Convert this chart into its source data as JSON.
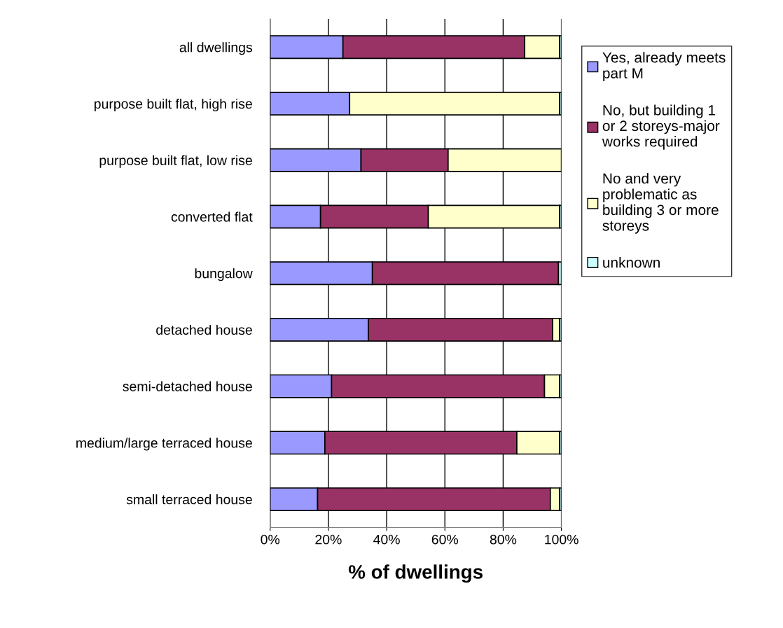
{
  "chart_data": {
    "type": "bar",
    "orientation": "horizontal",
    "stacked": true,
    "xlabel": "% of dwellings",
    "categories": [
      "all dwellings",
      "purpose built flat, high rise",
      "purpose built flat, low rise",
      "converted flat",
      "bungalow",
      "detached house",
      "semi-detached house",
      "medium/large terraced house",
      "small terraced house"
    ],
    "series": [
      {
        "name": "Yes, already meets part M",
        "color": "#9999ff",
        "values": [
          25,
          27.3,
          31.2,
          17.3,
          35.1,
          33.7,
          21.1,
          18.8,
          16.3
        ]
      },
      {
        "name": "No, but building 1 or 2 storeys-major works required",
        "color": "#993366",
        "values": [
          62.4,
          0,
          29.9,
          37.0,
          63.9,
          63.3,
          73.1,
          65.9,
          79.9
        ]
      },
      {
        "name": "No and very problematic as building 3 or more storeys",
        "color": "#ffffcc",
        "values": [
          12,
          72.1,
          38.9,
          45.1,
          0,
          2.4,
          5.2,
          14.7,
          3.2
        ]
      },
      {
        "name": "unknown",
        "color": "#ccffff",
        "values": [
          0.6,
          0.6,
          0,
          0.6,
          1.0,
          0.6,
          0.6,
          0.6,
          0.6
        ]
      }
    ],
    "xlim": [
      0,
      100
    ],
    "xticks": [
      {
        "value": 0,
        "label": "0%"
      },
      {
        "value": 20,
        "label": "20%"
      },
      {
        "value": 40,
        "label": "40%"
      },
      {
        "value": 60,
        "label": "60%"
      },
      {
        "value": 80,
        "label": "80%"
      },
      {
        "value": 100,
        "label": "100%"
      }
    ],
    "grid": "x",
    "legend": "right"
  }
}
